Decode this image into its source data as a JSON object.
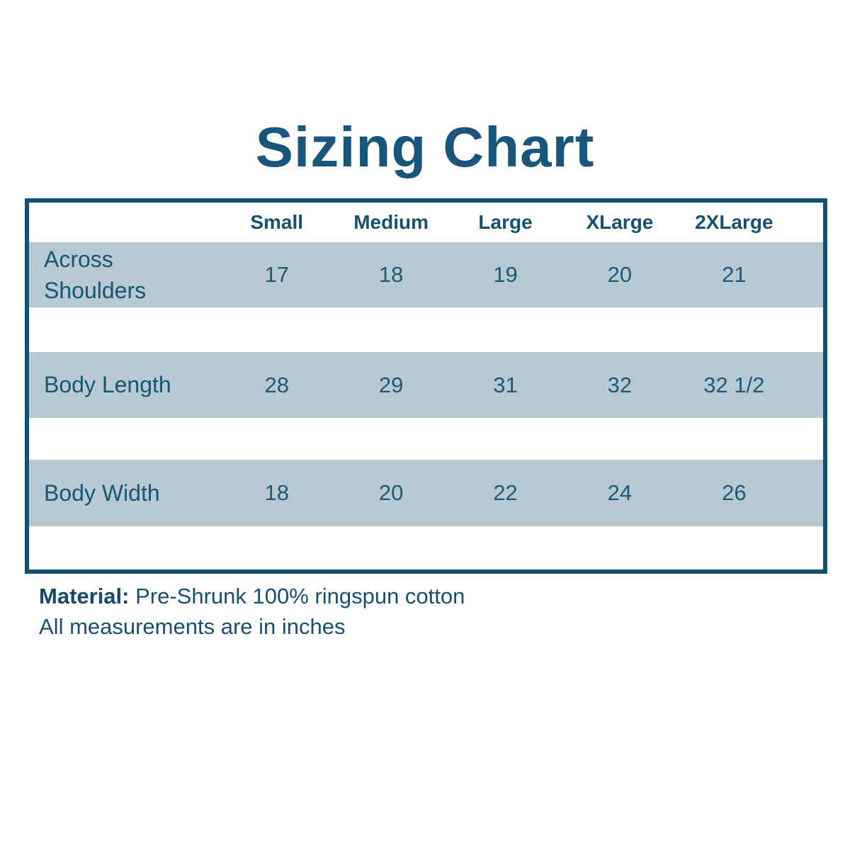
{
  "title": "Sizing Chart",
  "chart_data": {
    "type": "table",
    "title": "Sizing Chart",
    "columns": [
      "",
      "Small",
      "Medium",
      "Large",
      "XLarge",
      "2XLarge"
    ],
    "rows": [
      [
        "Across Shoulders",
        17,
        18,
        19,
        20,
        21
      ],
      [
        "Body Length",
        28,
        29,
        31,
        32,
        "32 1/2"
      ],
      [
        "Body Width",
        18,
        20,
        22,
        24,
        26
      ]
    ],
    "notes": [
      "Material: Pre-Shrunk 100% ringspun cotton",
      "All measurements are in inches"
    ],
    "units": "inches",
    "layout": {
      "row_band_style": "alternating light-blue bands separated by white gaps",
      "grid": false
    }
  },
  "footer": {
    "material_label": "Material:",
    "material_value": "Pre-Shrunk 100% ringspun cotton",
    "note": "All measurements are in inches"
  },
  "colors": {
    "accent_dark": "#17567a",
    "table_border": "#12516f",
    "row_band": "#b8c9d2",
    "background": "#ffffff"
  }
}
